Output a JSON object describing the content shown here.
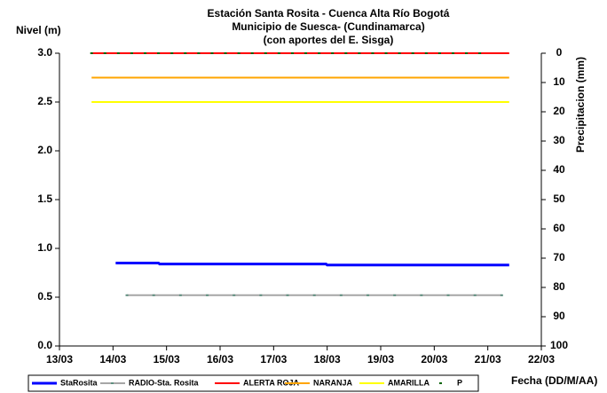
{
  "chart_data": {
    "type": "line",
    "title": [
      "Estación Santa Rosita - Cuenca Alta Río Bogotá",
      "Municipio de Suesca- (Cundinamarca)",
      "(con aportes del  E. Sisga)"
    ],
    "ylabel": "Nivel (m)",
    "y2label": "Precipitacion (mm)",
    "xlabel": "Fecha (DD/M/AA)",
    "xlim": [
      13,
      22
    ],
    "xticks": [
      {
        "value": 13,
        "label": "13/03"
      },
      {
        "value": 14,
        "label": "14/03"
      },
      {
        "value": 15,
        "label": "15/03"
      },
      {
        "value": 16,
        "label": "16/03"
      },
      {
        "value": 17,
        "label": "17/03"
      },
      {
        "value": 18,
        "label": "18/03"
      },
      {
        "value": 19,
        "label": "19/03"
      },
      {
        "value": 20,
        "label": "20/03"
      },
      {
        "value": 21,
        "label": "21/03"
      },
      {
        "value": 22,
        "label": "22/03"
      }
    ],
    "ylim": [
      0,
      3
    ],
    "yticks": [
      {
        "value": 0,
        "label": "0.0"
      },
      0.5,
      {
        "value": 1,
        "label": "1.0"
      },
      1.5,
      {
        "value": 2,
        "label": "2.0"
      },
      2.5,
      {
        "value": 3,
        "label": "3.0"
      }
    ],
    "y2lim": [
      100,
      0
    ],
    "y2ticks": [
      0,
      10,
      20,
      30,
      40,
      50,
      60,
      70,
      80,
      90,
      100
    ],
    "grid": false,
    "legend": "bottom",
    "series": [
      {
        "name": "StaRosita",
        "color": "#0000ff",
        "style": "line",
        "x": [
          14.05,
          14.85,
          14.87,
          17.98,
          18.0,
          21.4
        ],
        "values": [
          0.85,
          0.85,
          0.84,
          0.84,
          0.83,
          0.83
        ]
      },
      {
        "name": "RADIO-Sta. Rosita",
        "color": "#a6a6a6",
        "style": "line-markers",
        "x": [
          14.26,
          14.76,
          15.26,
          15.76,
          16.26,
          16.76,
          17.26,
          17.76,
          18.26,
          18.76,
          19.26,
          19.76,
          20.26,
          20.76,
          21.26
        ],
        "values": [
          0.52,
          0.52,
          0.52,
          0.52,
          0.52,
          0.52,
          0.52,
          0.52,
          0.52,
          0.52,
          0.52,
          0.52,
          0.52,
          0.52,
          0.52
        ]
      },
      {
        "name": "ALERTA ROJA",
        "color": "#ff0000",
        "style": "line",
        "x": [
          13.6,
          21.4
        ],
        "values": [
          3,
          3
        ]
      },
      {
        "name": "NARANJA",
        "color": "#ffa500",
        "style": "line",
        "x": [
          13.6,
          21.4
        ],
        "values": [
          2.75,
          2.75
        ]
      },
      {
        "name": "AMARILLA",
        "color": "#ffff00",
        "style": "line",
        "x": [
          13.6,
          21.4
        ],
        "values": [
          2.5,
          2.5
        ]
      },
      {
        "name": "P",
        "color": "#006400",
        "style": "markers",
        "axis": "y2",
        "x": [
          13.6,
          13.85,
          14.1,
          14.35,
          14.6,
          14.85,
          15.1,
          15.35,
          15.6,
          15.85,
          16.1,
          16.35,
          16.6,
          16.85,
          17.1,
          17.35,
          17.6,
          17.85,
          18.1,
          18.35,
          18.6,
          18.85,
          19.1,
          19.35,
          19.6,
          19.85,
          20.1,
          20.35,
          20.6,
          20.85
        ],
        "values": [
          0,
          0,
          0,
          0,
          0,
          0,
          0,
          0,
          0,
          0,
          0,
          0,
          0,
          0,
          0,
          0,
          0,
          0,
          0,
          0,
          0,
          0,
          0,
          0,
          0,
          0,
          0,
          0,
          0,
          0
        ]
      }
    ]
  }
}
